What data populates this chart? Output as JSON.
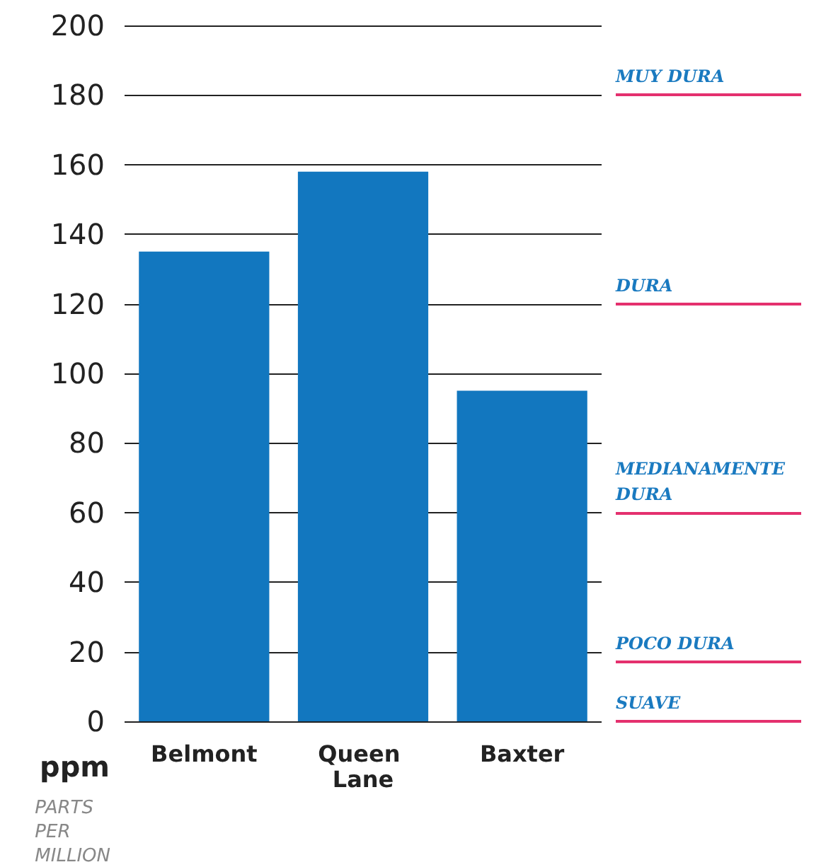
{
  "chart_data": {
    "type": "bar",
    "ylabel": "ppm",
    "annotations": [
      "PARTS PER MILLION"
    ],
    "categories": [
      "Belmont",
      "Queen Lane",
      "Baxter"
    ],
    "values": [
      135,
      158,
      95
    ],
    "color": "#1277bf",
    "ylim": [
      0,
      200
    ],
    "yticks": [
      0,
      20,
      40,
      60,
      80,
      100,
      120,
      140,
      160,
      180,
      200
    ],
    "grid": "y",
    "ref_lines": [
      {
        "axis": "y",
        "value": 180,
        "label": "MUY DURA",
        "color": "#e4306e"
      },
      {
        "axis": "y",
        "value": 120,
        "label": "DURA",
        "color": "#e4306e"
      },
      {
        "axis": "y",
        "value": 60,
        "label": "MEDIANAMENTE DURA",
        "color": "#e4306e"
      },
      {
        "axis": "y",
        "value": 17,
        "label": "POCO DURA",
        "color": "#e4306e"
      },
      {
        "axis": "y",
        "value": 0,
        "label": "SUAVE",
        "color": "#e4306e"
      }
    ]
  }
}
